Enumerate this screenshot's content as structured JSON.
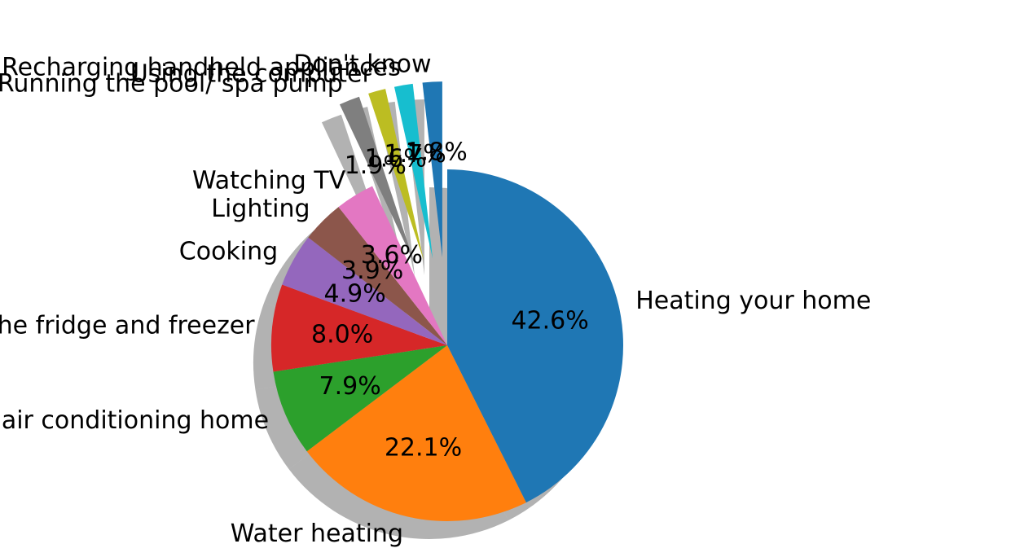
{
  "chart_data": {
    "type": "pie",
    "title": "",
    "start_angle_deg": 90,
    "direction": "clockwise",
    "shadow": true,
    "slices": [
      {
        "label": "Heating your home",
        "value": 42.6,
        "pct_label": "42.6%",
        "color": "#1f77b4",
        "explode": 0
      },
      {
        "label": "Water heating",
        "value": 22.1,
        "pct_label": "22.1%",
        "color": "#ff7f0e",
        "explode": 0
      },
      {
        "label": "Cooling/ air conditioning home",
        "value": 7.9,
        "pct_label": "7.9%",
        "color": "#2ca02c",
        "explode": 0
      },
      {
        "label": "Running the fridge and freezer",
        "value": 8.0,
        "pct_label": "8.0%",
        "color": "#d62728",
        "explode": 0
      },
      {
        "label": "Cooking",
        "value": 4.9,
        "pct_label": "4.9%",
        "color": "#9467bd",
        "explode": 0
      },
      {
        "label": "Lighting",
        "value": 3.9,
        "pct_label": "3.9%",
        "color": "#8c564b",
        "explode": 0
      },
      {
        "label": "Watching TV",
        "value": 3.6,
        "pct_label": "3.6%",
        "color": "#e377c2",
        "explode": 0
      },
      {
        "label": "Running the pool/ spa pump",
        "value": 1.9,
        "pct_label": "1.9%",
        "color": "#7f7f7f",
        "explode": 0.5
      },
      {
        "label": "Using the computer",
        "value": 1.6,
        "pct_label": "1.6%",
        "color": "#bcbd22",
        "explode": 0.5
      },
      {
        "label": "Other/ Recharging handheld appliances",
        "value": 1.7,
        "pct_label": "1.7%",
        "color": "#17becf",
        "explode": 0.5
      },
      {
        "label": "Don't know",
        "value": 1.8,
        "pct_label": "1.8%",
        "color": "#1f77b4",
        "explode": 0.5
      }
    ]
  }
}
